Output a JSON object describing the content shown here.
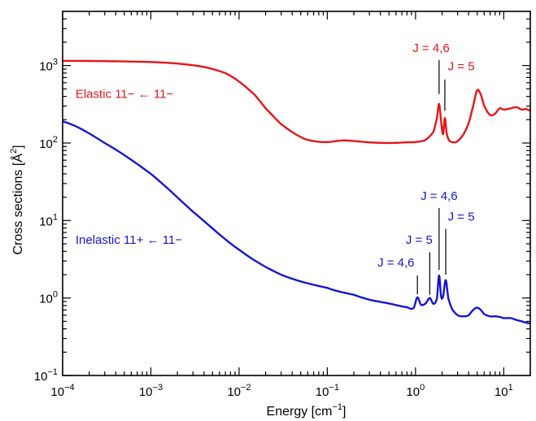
{
  "chart_data": {
    "type": "line",
    "xlabel": "Energy [cm",
    "xlabel_sup": "−1",
    "xlabel_end": "]",
    "ylabel": "Cross sections [Å",
    "ylabel_sup": "2",
    "ylabel_end": "]",
    "xscale": "log",
    "yscale": "log",
    "xlim": [
      0.0001,
      20
    ],
    "ylim": [
      0.1,
      5000
    ],
    "grid": false,
    "x_ticks": [
      {
        "value": 0.0001,
        "base": "10",
        "exp": "−4"
      },
      {
        "value": 0.001,
        "base": "10",
        "exp": "−3"
      },
      {
        "value": 0.01,
        "base": "10",
        "exp": "−2"
      },
      {
        "value": 0.1,
        "base": "10",
        "exp": "−1"
      },
      {
        "value": 1,
        "base": "10",
        "exp": "0"
      },
      {
        "value": 10,
        "base": "10",
        "exp": "1"
      }
    ],
    "y_ticks": [
      {
        "value": 0.1,
        "base": "10",
        "exp": "−1"
      },
      {
        "value": 1,
        "base": "10",
        "exp": "0"
      },
      {
        "value": 10,
        "base": "10",
        "exp": "1"
      },
      {
        "value": 100,
        "base": "10",
        "exp": "2"
      },
      {
        "value": 1000,
        "base": "10",
        "exp": "3"
      }
    ],
    "series": [
      {
        "name": "Elastic 11− ← 11−",
        "color": "#e8141a",
        "x": [
          0.0001,
          0.0003,
          0.001,
          0.002,
          0.004,
          0.007,
          0.01,
          0.015,
          0.02,
          0.03,
          0.05,
          0.07,
          0.1,
          0.15,
          0.2,
          0.3,
          0.5,
          0.8,
          1.0,
          1.3,
          1.6,
          1.75,
          1.85,
          1.95,
          2.05,
          2.15,
          2.25,
          2.4,
          2.7,
          3.0,
          3.5,
          4.0,
          4.5,
          5.0,
          5.5,
          6.0,
          7.0,
          8.0,
          9.0,
          10.0,
          12.0,
          14.0,
          16.0,
          18.0,
          20.0
        ],
        "y": [
          1150,
          1140,
          1110,
          1060,
          960,
          800,
          620,
          420,
          280,
          175,
          120,
          106,
          103,
          108,
          106,
          102,
          100,
          102,
          103,
          110,
          140,
          210,
          320,
          190,
          130,
          210,
          135,
          108,
          102,
          106,
          130,
          180,
          300,
          480,
          420,
          300,
          230,
          240,
          280,
          270,
          280,
          290,
          270,
          275,
          260
        ]
      },
      {
        "name": "Inelastic 11+ ← 11−",
        "color": "#1515d6",
        "x": [
          0.0001,
          0.0003,
          0.001,
          0.003,
          0.01,
          0.03,
          0.1,
          0.2,
          0.3,
          0.5,
          0.8,
          0.95,
          1.05,
          1.15,
          1.3,
          1.45,
          1.6,
          1.75,
          1.85,
          1.95,
          2.05,
          2.2,
          2.35,
          2.6,
          3.0,
          3.5,
          4.0,
          4.5,
          5.0,
          5.5,
          6.0,
          7.0,
          8.0,
          9.0,
          10.0,
          12.0,
          14.0,
          16.0,
          18.0,
          20.0
        ],
        "y": [
          190,
          100,
          40,
          13,
          4.2,
          2.0,
          1.35,
          1.1,
          0.95,
          0.85,
          0.76,
          0.74,
          1.02,
          0.82,
          0.85,
          1.0,
          0.84,
          1.0,
          1.95,
          1.05,
          1.05,
          1.7,
          1.0,
          0.72,
          0.6,
          0.58,
          0.6,
          0.7,
          0.75,
          0.7,
          0.62,
          0.58,
          0.58,
          0.57,
          0.55,
          0.55,
          0.52,
          0.5,
          0.48,
          0.47
        ]
      }
    ],
    "annotations": [
      {
        "name": "annot-elastic-label",
        "text": "Elastic 11− ← 11−",
        "color": "#e8141a",
        "x": 0.00014,
        "y": 380,
        "anchor": "start"
      },
      {
        "name": "annot-inelastic-label",
        "text": "Inelastic 11+ ← 11−",
        "color": "#1515d6",
        "x": 0.00014,
        "y": 5.0,
        "anchor": "start"
      },
      {
        "name": "annot-elastic-j46",
        "text": "J = 4,6",
        "color": "#e8141a",
        "x": 1.5,
        "y": 1500,
        "anchor": "middle",
        "line_from": 1180,
        "line_to": 430,
        "line_x": 1.85
      },
      {
        "name": "annot-elastic-j5",
        "text": "J = 5",
        "color": "#e8141a",
        "x": 3.3,
        "y": 870,
        "anchor": "middle",
        "line_from": 660,
        "line_to": 260,
        "line_x": 2.15
      },
      {
        "name": "annot-inelastic-j46-upper",
        "text": "J = 4,6",
        "color": "#1515d6",
        "x": 1.85,
        "y": 18.5,
        "anchor": "middle",
        "line_from": 14.5,
        "line_to": 2.3,
        "line_x": 1.85
      },
      {
        "name": "annot-inelastic-j5-upper",
        "text": "J = 5",
        "color": "#1515d6",
        "x": 3.3,
        "y": 10.0,
        "anchor": "middle",
        "line_from": 7.8,
        "line_to": 2.0,
        "line_x": 2.2
      },
      {
        "name": "annot-inelastic-j5-lower",
        "text": "J = 5",
        "color": "#1515d6",
        "x": 1.1,
        "y": 5.0,
        "anchor": "middle",
        "line_from": 3.9,
        "line_to": 1.1,
        "line_x": 1.45
      },
      {
        "name": "annot-inelastic-j46-lower",
        "text": "J = 4,6",
        "color": "#1515d6",
        "x": 0.6,
        "y": 2.55,
        "anchor": "middle",
        "line_from": 1.95,
        "line_to": 1.12,
        "line_x": 1.05
      }
    ]
  }
}
